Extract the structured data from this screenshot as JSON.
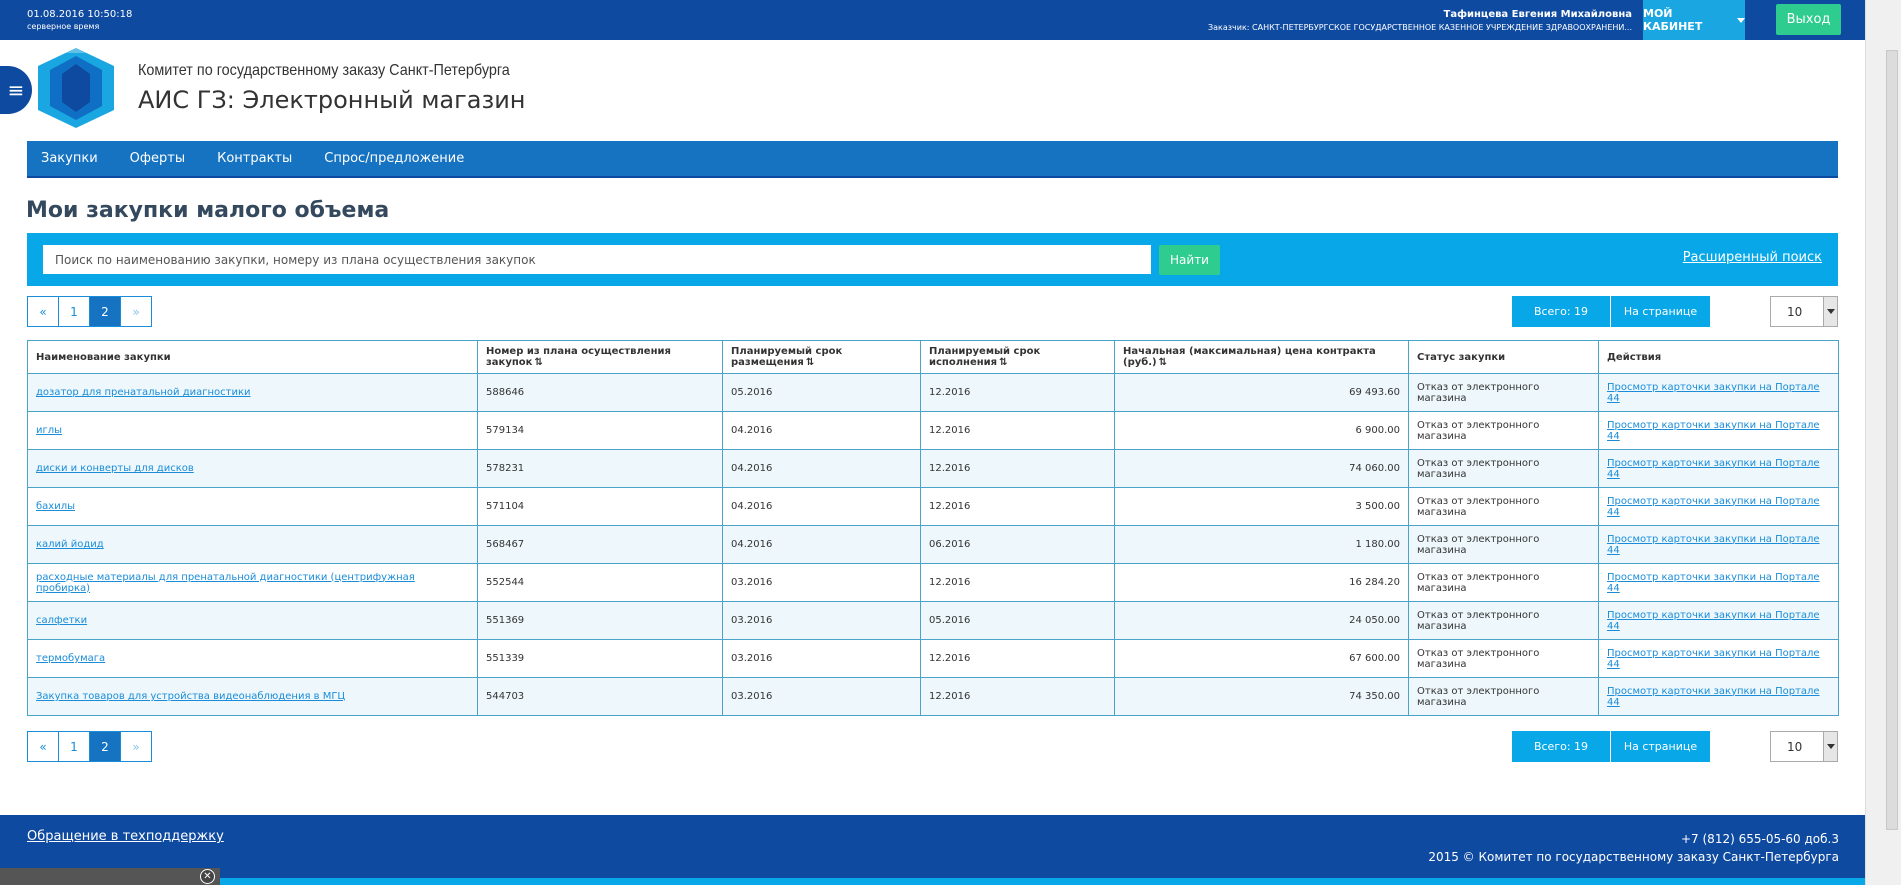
{
  "topbar": {
    "datetime": "01.08.2016 10:50:18",
    "timezone": "серверное время",
    "user_name": "Тафинцева Евгения Михайловна",
    "user_org": "Заказчик: САНКТ-ПЕТЕРБУРГСКОЕ ГОСУДАРСТВЕННОЕ КАЗЕННОЕ УЧРЕЖДЕНИЕ ЗДРАВООХРАНЕНИ...",
    "cabinet_label": "МОЙ КАБИНЕТ",
    "logout_label": "Выход"
  },
  "header": {
    "committee": "Комитет по государственному заказу Санкт-Петербурга",
    "app_title": "АИС ГЗ: Электронный магазин"
  },
  "nav": {
    "items": [
      "Закупки",
      "Оферты",
      "Контракты",
      "Спрос/предложение"
    ]
  },
  "page_title": "Мои закупки малого объема",
  "search": {
    "placeholder": "Поиск по наименованию закупки, номеру из плана осуществления закупок",
    "find_label": "Найти",
    "advanced_label": "Расширенный поиск"
  },
  "pagination": {
    "prev": "«",
    "next": "»",
    "pages": [
      "1",
      "2"
    ],
    "total_label": "Всего: 19",
    "per_page_label": "На странице",
    "per_page_value": "10"
  },
  "table": {
    "columns": [
      "Наименование закупки",
      "Номер из плана осуществления закупок",
      "Планируемый срок размещения",
      "Планируемый срок исполнения",
      "Начальная (максимальная) цена контракта (руб.)",
      "Статус закупки",
      "Действия"
    ],
    "sort_icon": "⇅",
    "rows": [
      {
        "name": "дозатор для пренатальной диагностики",
        "plan": "588646",
        "place": "05.2016",
        "exec": "12.2016",
        "price": "69 493.60",
        "status": "Отказ от электронного магазина",
        "action": "Просмотр карточки закупки на Портале 44"
      },
      {
        "name": "иглы",
        "plan": "579134",
        "place": "04.2016",
        "exec": "12.2016",
        "price": "6 900.00",
        "status": "Отказ от электронного магазина",
        "action": "Просмотр карточки закупки на Портале 44"
      },
      {
        "name": "диски и конверты для дисков",
        "plan": "578231",
        "place": "04.2016",
        "exec": "12.2016",
        "price": "74 060.00",
        "status": "Отказ от электронного магазина",
        "action": "Просмотр карточки закупки на Портале 44"
      },
      {
        "name": "бахилы",
        "plan": "571104",
        "place": "04.2016",
        "exec": "12.2016",
        "price": "3 500.00",
        "status": "Отказ от электронного магазина",
        "action": "Просмотр карточки закупки на Портале 44"
      },
      {
        "name": "калий йодид",
        "plan": "568467",
        "place": "04.2016",
        "exec": "06.2016",
        "price": "1 180.00",
        "status": "Отказ от электронного магазина",
        "action": "Просмотр карточки закупки на Портале 44"
      },
      {
        "name": "расходные материалы для пренатальной диагностики (центрифужная пробирка)",
        "plan": "552544",
        "place": "03.2016",
        "exec": "12.2016",
        "price": "16 284.20",
        "status": "Отказ от электронного магазина",
        "action": "Просмотр карточки закупки на Портале 44"
      },
      {
        "name": "салфетки",
        "plan": "551369",
        "place": "03.2016",
        "exec": "05.2016",
        "price": "24 050.00",
        "status": "Отказ от электронного магазина",
        "action": "Просмотр карточки закупки на Портале 44"
      },
      {
        "name": "термобумага",
        "plan": "551339",
        "place": "03.2016",
        "exec": "12.2016",
        "price": "67 600.00",
        "status": "Отказ от электронного магазина",
        "action": "Просмотр карточки закупки на Портале 44"
      },
      {
        "name": "Закупка товаров для устройства видеонаблюдения в МГЦ",
        "plan": "544703",
        "place": "03.2016",
        "exec": "12.2016",
        "price": "74 350.00",
        "status": "Отказ от электронного магазина",
        "action": "Просмотр карточки закупки на Портале 44"
      }
    ]
  },
  "footer": {
    "support_label": "Обращение в техподдержку",
    "phone": "+7 (812) 655-05-60 доб.3",
    "copyright": "2015 © Комитет по государственному заказу Санкт-Петербурга"
  },
  "colors": {
    "dark_blue": "#0e4aa0",
    "nav_blue": "#1673c2",
    "light_blue": "#07a7e8",
    "green": "#2ecc8e"
  }
}
